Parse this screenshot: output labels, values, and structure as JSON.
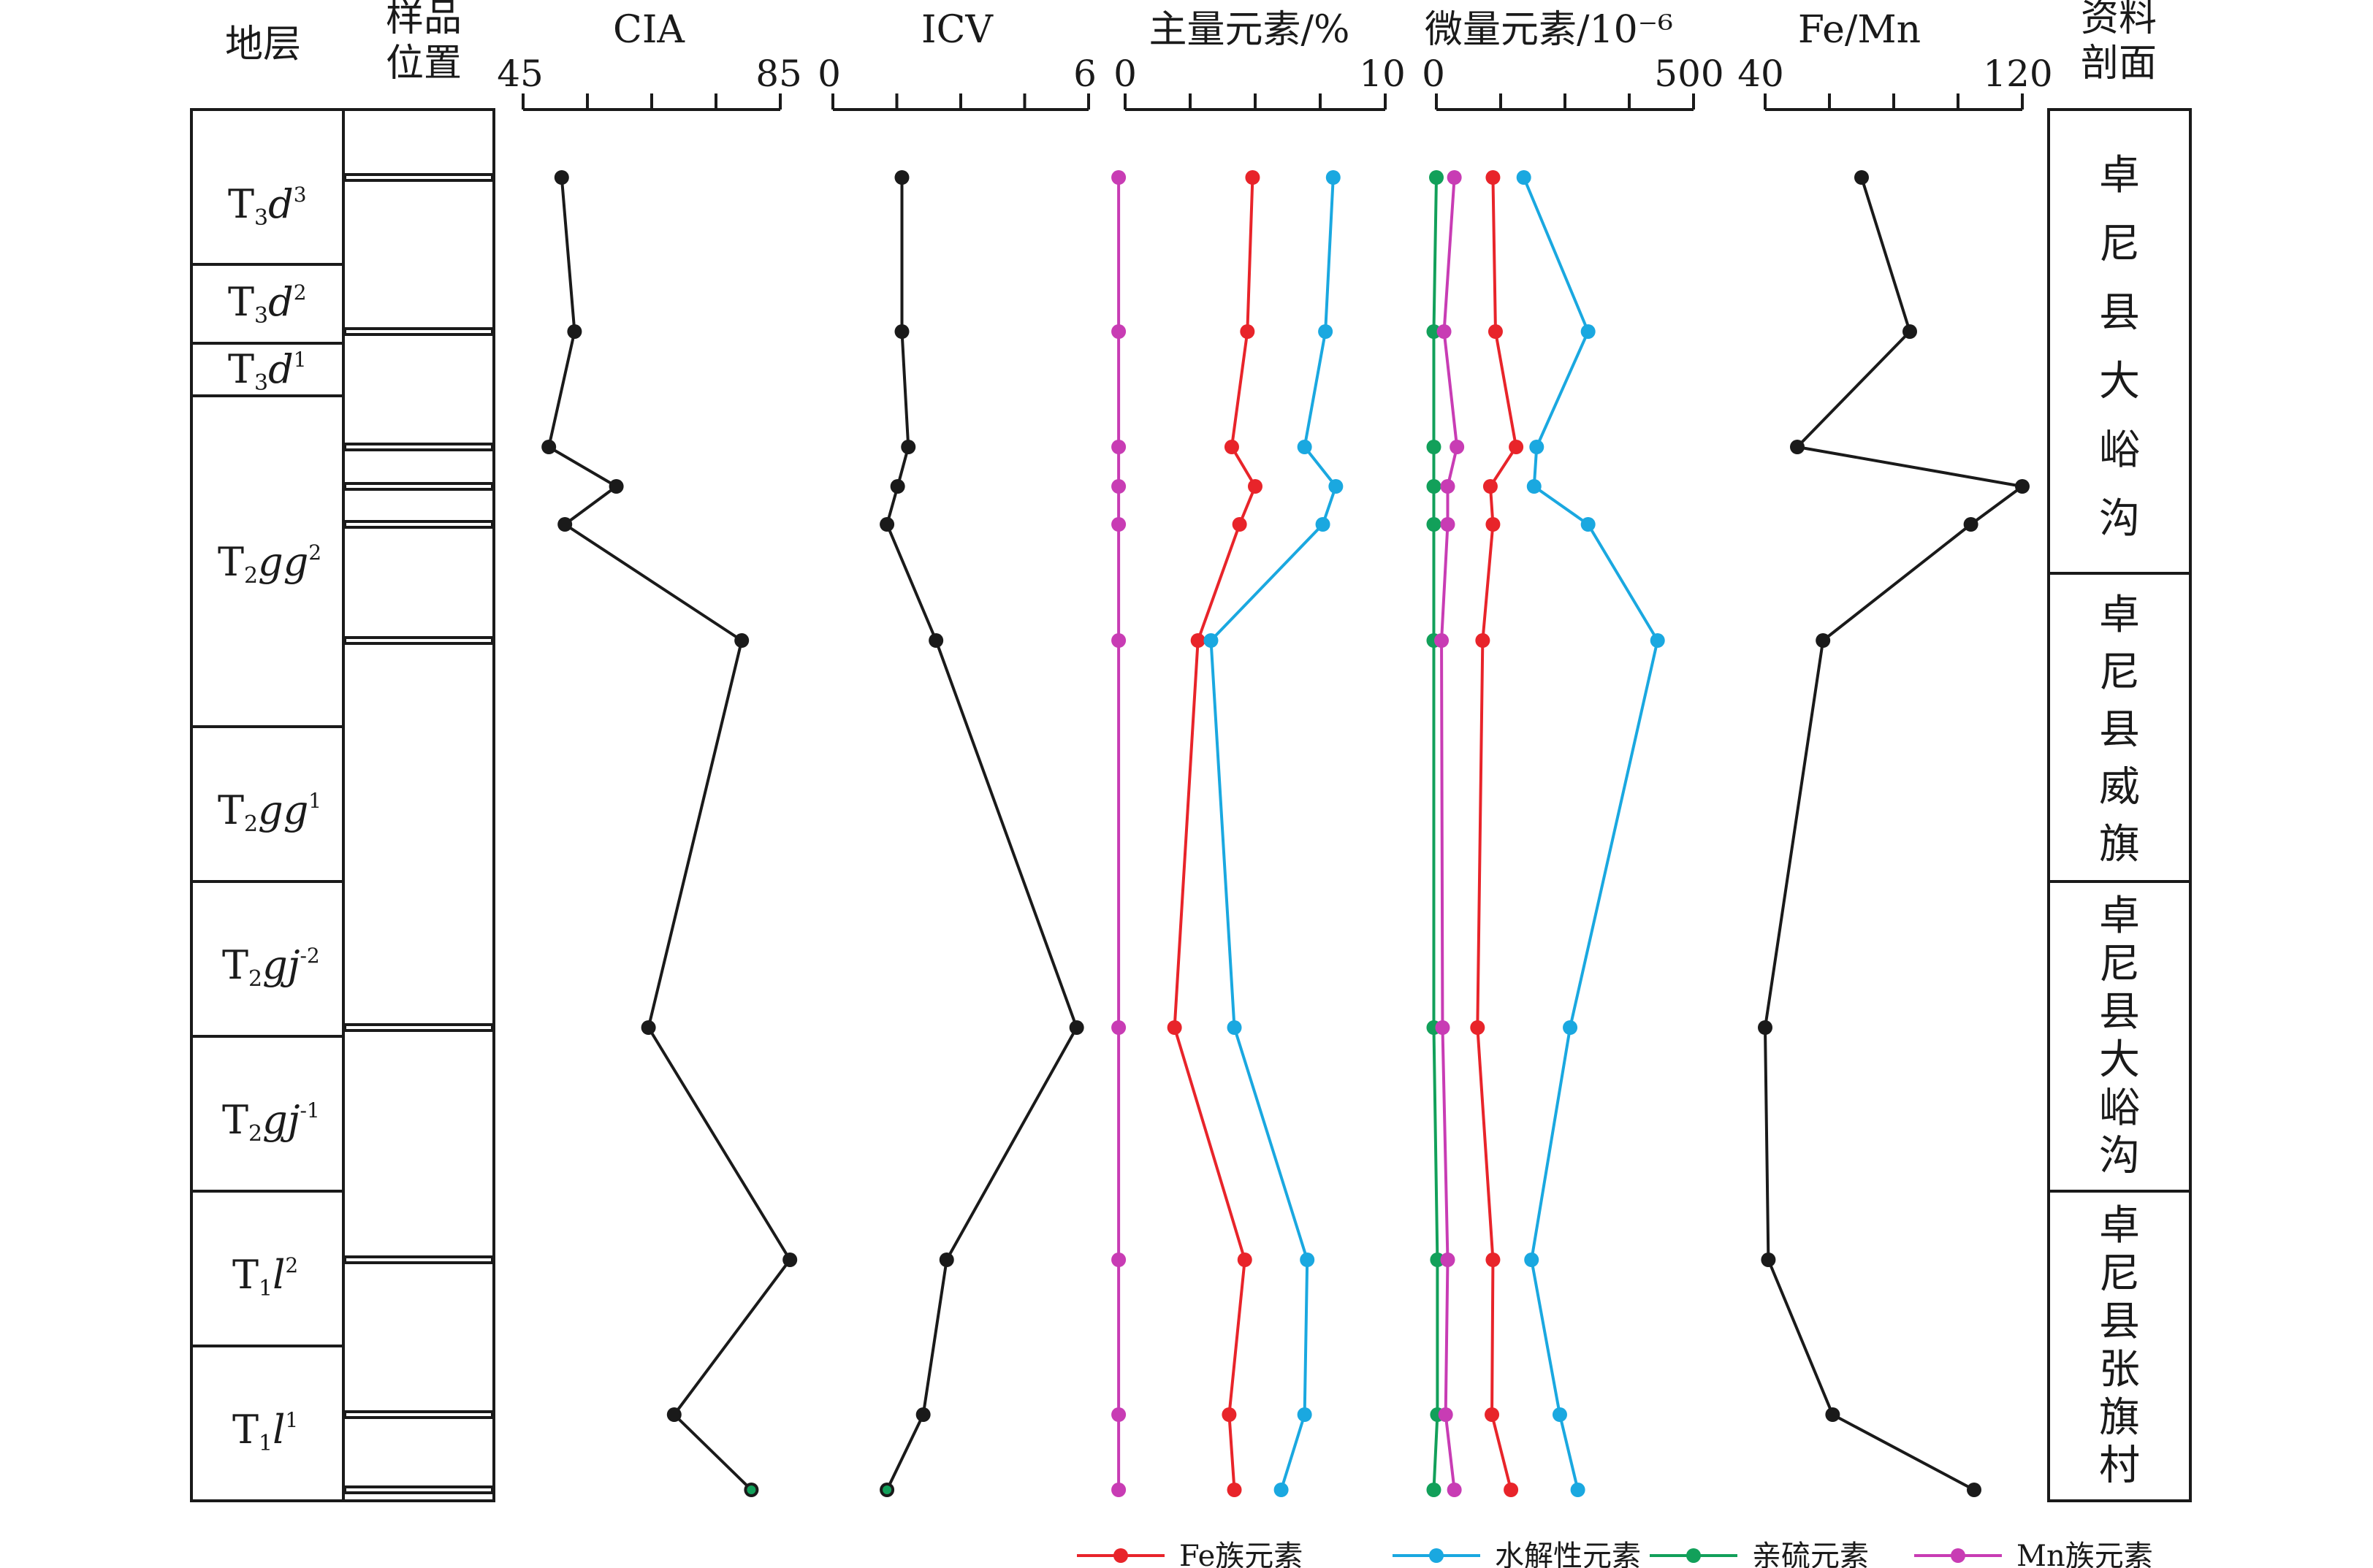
{
  "headers": {
    "strata": "地层",
    "sample": [
      "样品",
      "位置"
    ],
    "source": [
      "资料",
      "剖面"
    ]
  },
  "strata": [
    {
      "base": "T",
      "sub": "3",
      "name": "d",
      "sup": "3"
    },
    {
      "base": "T",
      "sub": "3",
      "name": "d",
      "sup": "2"
    },
    {
      "base": "T",
      "sub": "3",
      "name": "d",
      "sup": "1"
    },
    {
      "base": "T",
      "sub": "2",
      "name": "gg",
      "sup": "2"
    },
    {
      "base": "T",
      "sub": "2",
      "name": "gg",
      "sup": "1"
    },
    {
      "base": "T",
      "sub": "2",
      "name": "gj",
      "sup": "-2"
    },
    {
      "base": "T",
      "sub": "2",
      "name": "gj",
      "sup": "-1"
    },
    {
      "base": "T",
      "sub": "1",
      "name": "l",
      "sup": "2"
    },
    {
      "base": "T",
      "sub": "1",
      "name": "l",
      "sup": "1"
    }
  ],
  "sections": [
    "卓尼县大峪沟",
    "卓尼县威旗",
    "卓尼县大峪沟",
    "卓尼县张旗村"
  ],
  "colors": {
    "axis": "#1a1a1a",
    "black_series": "#1a1a1a",
    "fe": "#e8242a",
    "hydrolysate": "#1aa8e0",
    "thiophile": "#12a05a",
    "mn": "#c83cb4"
  },
  "legend": [
    {
      "label": "Fe族元素",
      "color_key": "fe"
    },
    {
      "label": "水解性元素",
      "color_key": "hydrolysate"
    },
    {
      "label": "亲硫元素",
      "color_key": "thiophile"
    },
    {
      "label": "Mn族元素",
      "color_key": "mn"
    }
  ],
  "chart_data": [
    {
      "type": "line",
      "title": "CIA",
      "xlim": [
        45,
        85
      ],
      "tick_labels": [
        "45",
        "85"
      ],
      "series": [
        {
          "color_key": "black_series",
          "values": [
            51.0,
            53.0,
            49.0,
            59.5,
            51.5,
            79.0,
            64.5,
            86.5,
            68.5,
            80.5
          ]
        }
      ]
    },
    {
      "type": "line",
      "title": "ICV",
      "xlim": [
        0,
        6
      ],
      "tick_labels": [
        "0",
        "6"
      ],
      "series": [
        {
          "color_key": "black_series",
          "values": [
            1.62,
            1.62,
            1.77,
            1.52,
            1.27,
            2.42,
            5.72,
            2.67,
            2.12,
            1.27
          ]
        }
      ]
    },
    {
      "type": "line",
      "title": "主量元素/%",
      "xlim": [
        0,
        10
      ],
      "tick_labels": [
        "0",
        "10"
      ],
      "series": [
        {
          "name": "Fe族元素",
          "color_key": "fe",
          "values": [
            4.9,
            4.7,
            4.1,
            5.0,
            4.4,
            2.8,
            1.9,
            4.6,
            4.0,
            4.2
          ]
        },
        {
          "name": "水解性元素",
          "color_key": "hydrolysate",
          "values": [
            8.0,
            7.7,
            6.9,
            8.1,
            7.6,
            3.3,
            4.2,
            7.0,
            6.9,
            6.0
          ]
        },
        {
          "name": "Mn族元素",
          "color_key": "mn",
          "values": [
            -0.25,
            -0.25,
            -0.25,
            -0.25,
            -0.25,
            -0.25,
            -0.25,
            -0.25,
            -0.25,
            -0.25
          ]
        }
      ]
    },
    {
      "type": "line",
      "title": "微量元素/10⁻⁶",
      "xlim": [
        0,
        500
      ],
      "tick_labels": [
        "0",
        "500"
      ],
      "series": [
        {
          "name": "Fe族元素",
          "color_key": "fe",
          "values": [
            110,
            115,
            155,
            105,
            110,
            90,
            80,
            110,
            108,
            145
          ]
        },
        {
          "name": "水解性元素",
          "color_key": "hydrolysate",
          "values": [
            170,
            295,
            195,
            190,
            295,
            430,
            260,
            185,
            240,
            275
          ]
        },
        {
          "name": "亲硫元素",
          "color_key": "thiophile",
          "values": [
            0,
            -5,
            -5,
            -5,
            -5,
            -5,
            -5,
            2,
            2,
            -5
          ]
        },
        {
          "name": "Mn族元素",
          "color_key": "mn",
          "values": [
            35,
            15,
            40,
            22,
            22,
            10,
            12,
            22,
            18,
            35
          ]
        }
      ]
    },
    {
      "type": "line",
      "title": "Fe/Mn",
      "xlim": [
        40,
        120
      ],
      "tick_labels": [
        "40",
        "120"
      ],
      "series": [
        {
          "color_key": "black_series",
          "values": [
            70,
            85,
            50,
            120,
            104,
            58,
            40,
            41,
            61,
            105
          ]
        }
      ]
    }
  ]
}
